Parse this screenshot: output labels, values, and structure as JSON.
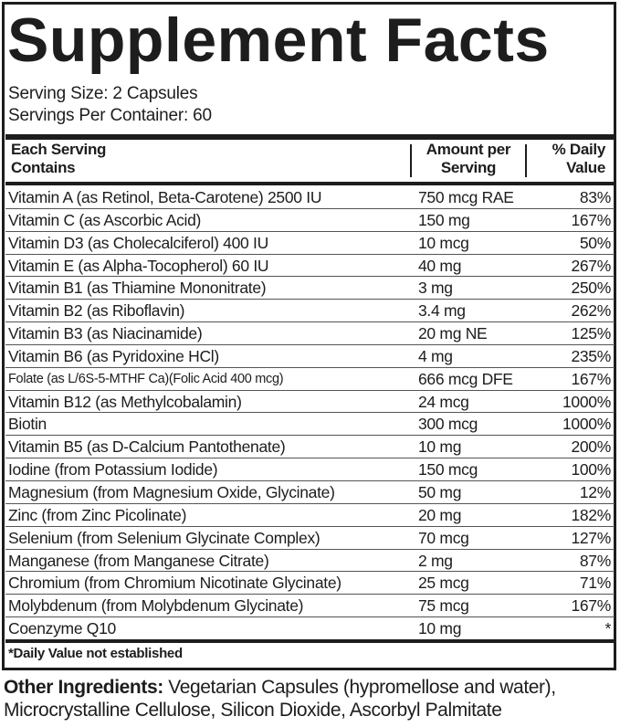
{
  "title": "Supplement Facts",
  "serving_size": "Serving Size: 2 Capsules",
  "servings_per_container": "Servings Per Container: 60",
  "headers": {
    "name_line1": "Each Serving",
    "name_line2": "Contains",
    "amount_line1": "Amount per",
    "amount_line2": "Serving",
    "dv_line1": "% Daily",
    "dv_line2": "Value"
  },
  "rows": [
    {
      "name": "Vitamin A (as Retinol, Beta-Carotene) 2500 IU",
      "amount": "750 mcg RAE",
      "dv": "83%"
    },
    {
      "name": "Vitamin C (as Ascorbic Acid)",
      "amount": "150 mg",
      "dv": "167%"
    },
    {
      "name": "Vitamin D3 (as Cholecalciferol) 400 IU",
      "amount": "10 mcg",
      "dv": "50%"
    },
    {
      "name": "Vitamin E (as Alpha-Tocopherol) 60 IU",
      "amount": "40 mg",
      "dv": "267%"
    },
    {
      "name": "Vitamin B1 (as Thiamine Mononitrate)",
      "amount": "3 mg",
      "dv": "250%"
    },
    {
      "name": "Vitamin B2 (as Riboflavin)",
      "amount": "3.4 mg",
      "dv": "262%"
    },
    {
      "name": "Vitamin B3 (as Niacinamide)",
      "amount": "20 mg NE",
      "dv": "125%"
    },
    {
      "name": "Vitamin B6 (as Pyridoxine HCl)",
      "amount": "4 mg",
      "dv": "235%"
    },
    {
      "name": "Folate (as L/6S-5-MTHF Ca)(Folic Acid 400 mcg)",
      "amount": "666 mcg DFE",
      "dv": "167%"
    },
    {
      "name": "Vitamin B12 (as Methylcobalamin)",
      "amount": "24 mcg",
      "dv": "1000%"
    },
    {
      "name": "Biotin",
      "amount": "300 mcg",
      "dv": "1000%"
    },
    {
      "name": "Vitamin B5 (as D-Calcium Pantothenate)",
      "amount": "10 mg",
      "dv": "200%"
    },
    {
      "name": "Iodine (from Potassium Iodide)",
      "amount": "150 mcg",
      "dv": "100%"
    },
    {
      "name": "Magnesium (from Magnesium Oxide, Glycinate)",
      "amount": "50 mg",
      "dv": "12%"
    },
    {
      "name": "Zinc (from Zinc Picolinate)",
      "amount": "20 mg",
      "dv": "182%"
    },
    {
      "name": "Selenium (from Selenium Glycinate Complex)",
      "amount": "70 mcg",
      "dv": "127%"
    },
    {
      "name": "Manganese (from Manganese Citrate)",
      "amount": "2 mg",
      "dv": "87%"
    },
    {
      "name": "Chromium (from Chromium Nicotinate Glycinate)",
      "amount": "25 mcg",
      "dv": "71%"
    },
    {
      "name": "Molybdenum (from Molybdenum Glycinate)",
      "amount": "75 mcg",
      "dv": "167%"
    },
    {
      "name": "Coenzyme Q10",
      "amount": "10 mg",
      "dv": "*"
    }
  ],
  "footnote": "*Daily Value not established",
  "other_label": "Other Ingredients:",
  "other_text": " Vegetarian Capsules (hypromellose and water), Microcrystalline Cellulose, Silicon Dioxide, Ascorbyl Palmitate"
}
